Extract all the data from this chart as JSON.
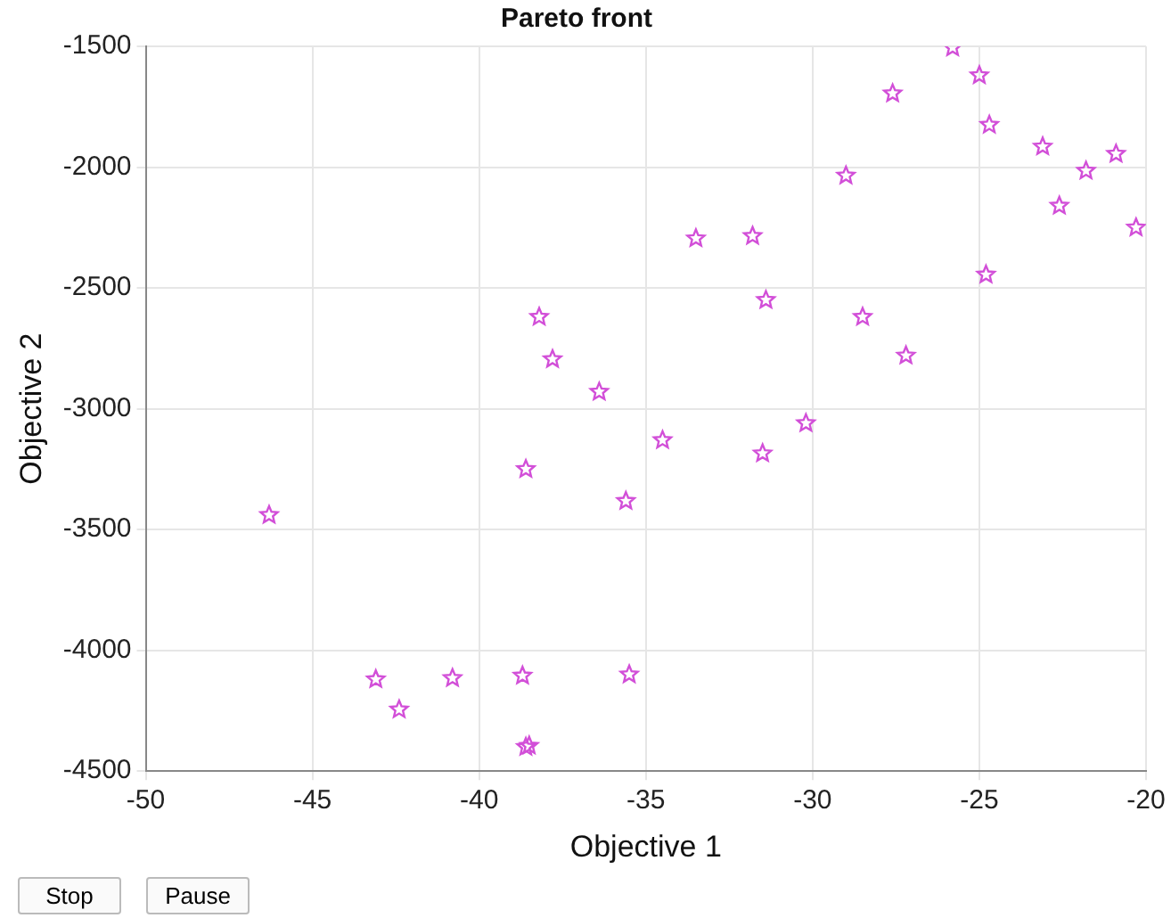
{
  "chart_data": {
    "type": "scatter",
    "title": "Pareto front",
    "xlabel": "Objective 1",
    "ylabel": "Objective 2",
    "x": [
      -46.3,
      -43.1,
      -42.4,
      -40.8,
      -38.7,
      -38.6,
      -38.5,
      -38.6,
      -38.2,
      -37.8,
      -36.4,
      -35.6,
      -35.5,
      -34.5,
      -33.5,
      -31.8,
      -31.4,
      -31.5,
      -30.2,
      -29.0,
      -28.5,
      -27.2,
      -27.6,
      -25.8,
      -25.0,
      -24.7,
      -24.8,
      -23.1,
      -22.6,
      -21.8,
      -20.9,
      -20.3
    ],
    "series": [
      {
        "color": "#d24fd8",
        "values": [
          -3440,
          -4120,
          -4245,
          -4115,
          -4105,
          -4400,
          -4395,
          -3250,
          -2620,
          -2795,
          -2930,
          -3382,
          -4100,
          -3130,
          -2295,
          -2285,
          -2550,
          -3185,
          -3060,
          -2035,
          -2620,
          -2780,
          -1695,
          -1505,
          -1620,
          -1825,
          -2445,
          -1915,
          -2160,
          -2015,
          -1945,
          -2250
        ]
      }
    ],
    "xlim": [
      -50,
      -20
    ],
    "xticks": [
      -50,
      -45,
      -40,
      -35,
      -30,
      -25,
      -20
    ],
    "ylim": [
      -4500,
      -1500
    ],
    "yticks": [
      -4500,
      -4000,
      -3500,
      -3000,
      -2500,
      -2000,
      -1500
    ],
    "grid": true,
    "marker": "star",
    "legend": false,
    "annotations": [
      "Stop",
      "Pause"
    ]
  }
}
